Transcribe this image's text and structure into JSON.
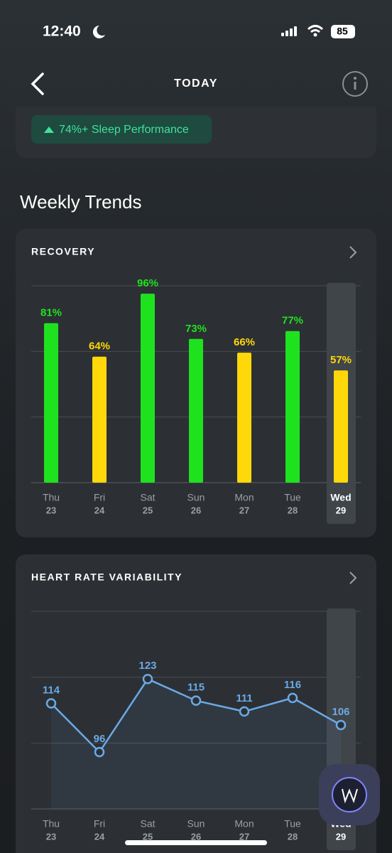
{
  "status_bar": {
    "time": "12:40",
    "battery": "85"
  },
  "header": {
    "title": "TODAY"
  },
  "badge": "74%+ Sleep Performance",
  "section_title": "Weekly Trends",
  "chart_data": [
    {
      "type": "bar",
      "title": "RECOVERY",
      "categories": [
        "Thu",
        "Fri",
        "Sat",
        "Sun",
        "Mon",
        "Tue",
        "Wed"
      ],
      "dates": [
        "23",
        "24",
        "25",
        "26",
        "27",
        "28",
        "29"
      ],
      "values": [
        81,
        64,
        96,
        73,
        66,
        77,
        57
      ],
      "value_labels": [
        "81%",
        "64%",
        "96%",
        "73%",
        "66%",
        "77%",
        "57%"
      ],
      "colors": [
        "#1fe21f",
        "#ffd80a",
        "#1fe21f",
        "#1fe21f",
        "#ffd80a",
        "#1fe21f",
        "#ffd80a"
      ],
      "ylim": [
        0,
        100
      ],
      "grid": true,
      "highlight_index": 6
    },
    {
      "type": "line",
      "title": "HEART RATE VARIABILITY",
      "categories": [
        "Thu",
        "Fri",
        "Sat",
        "Sun",
        "Mon",
        "Tue",
        "Wed"
      ],
      "dates": [
        "23",
        "24",
        "25",
        "26",
        "27",
        "28",
        "29"
      ],
      "values": [
        114,
        96,
        123,
        115,
        111,
        116,
        106
      ],
      "color": "#6ba9e6",
      "ylim": [
        75,
        148
      ],
      "grid": true,
      "highlight_index": 6
    }
  ]
}
